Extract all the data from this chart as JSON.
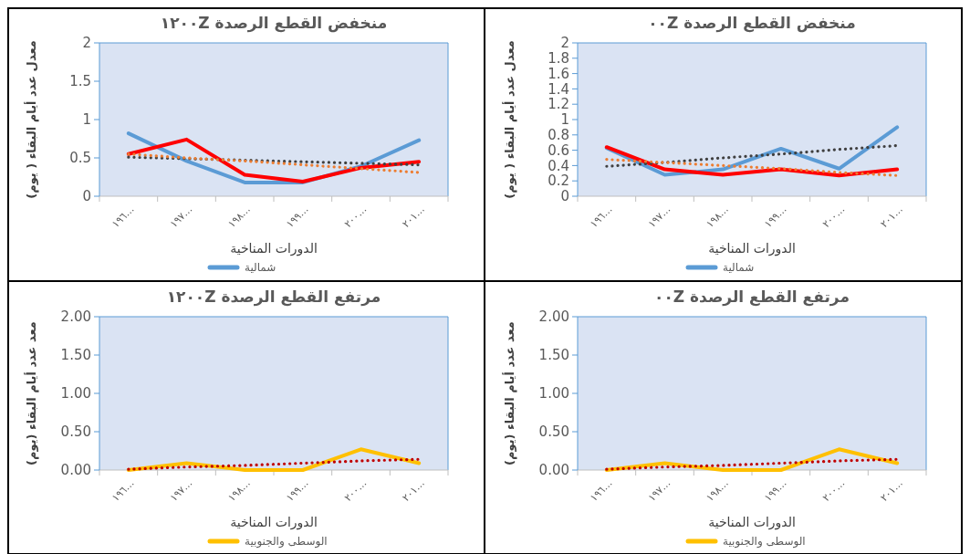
{
  "chart_data": [
    {
      "type": "line",
      "title": "منخفض القطع الرصدة ١٢٠٠Z",
      "ylabel": "معدل عدد أيام البقاء ( يوم)",
      "xlabel": "الدورات المناخية",
      "categories": [
        "١٩٦…",
        "١٩٧…",
        "١٩٨…",
        "١٩٩…",
        "٢٠٠…",
        "٢٠١…"
      ],
      "ylim": [
        0,
        2
      ],
      "yticks": [
        0,
        0.5,
        1,
        1.5,
        2
      ],
      "legend": "bottom",
      "series": [
        {
          "name": "شمالية",
          "color": "#5b9bd5",
          "values": [
            0.82,
            0.46,
            0.18,
            0.18,
            0.39,
            0.73
          ]
        },
        {
          "color": "#ff0000",
          "values": [
            0.55,
            0.74,
            0.28,
            0.19,
            0.37,
            0.45
          ]
        },
        {
          "color": "#404040",
          "line_style": "dotted",
          "values": [
            0.51,
            0.49,
            0.47,
            0.45,
            0.43,
            0.41
          ]
        },
        {
          "color": "#ed7d31",
          "line_style": "dotted",
          "values": [
            0.55,
            0.5,
            0.46,
            0.41,
            0.36,
            0.31
          ]
        }
      ]
    },
    {
      "type": "line",
      "title": "منخفض القطع الرصدة ٠٠Z",
      "ylabel": "معدل عدد أيام البقاء ( يوم)",
      "xlabel": "الدورات المناخية",
      "categories": [
        "١٩٦…",
        "١٩٧…",
        "١٩٨…",
        "١٩٩…",
        "٢٠٠…",
        "٢٠١…"
      ],
      "ylim": [
        0,
        2
      ],
      "yticks": [
        0,
        0.2,
        0.4,
        0.6,
        0.8,
        1,
        1.2,
        1.4,
        1.6,
        1.8,
        2
      ],
      "legend": "bottom",
      "series": [
        {
          "name": "شمالية",
          "color": "#5b9bd5",
          "values": [
            0.63,
            0.28,
            0.35,
            0.62,
            0.36,
            0.9
          ]
        },
        {
          "color": "#ff0000",
          "values": [
            0.64,
            0.35,
            0.28,
            0.35,
            0.27,
            0.35
          ]
        },
        {
          "color": "#404040",
          "line_style": "dotted",
          "values": [
            0.39,
            0.44,
            0.5,
            0.55,
            0.61,
            0.66
          ]
        },
        {
          "color": "#ed7d31",
          "line_style": "dotted",
          "values": [
            0.48,
            0.44,
            0.4,
            0.36,
            0.31,
            0.27
          ]
        }
      ]
    },
    {
      "type": "line",
      "title": "مرتفع القطع الرصدة ١٢٠٠Z",
      "ylabel": "معد عدد أيام البقاء (يوم)",
      "xlabel": "الدورات المناخية",
      "categories": [
        "١٩٦…",
        "١٩٧…",
        "١٩٨…",
        "١٩٩…",
        "٢٠٠…",
        "٢٠١…"
      ],
      "ylim": [
        0,
        2
      ],
      "yticks": [
        {
          "value": 0,
          "label": "0.00"
        },
        {
          "value": 0.5,
          "label": "0.50"
        },
        {
          "value": 1,
          "label": "1.00"
        },
        {
          "value": 1.5,
          "label": "1.50"
        },
        {
          "value": 2,
          "label": "2.00"
        }
      ],
      "legend": "bottom",
      "series": [
        {
          "name": "الوسطى والجنوبية",
          "color": "#ffc000",
          "values": [
            0,
            0.09,
            0,
            0,
            0.27,
            0.09
          ]
        },
        {
          "color": "#c00000",
          "line_style": "dotted",
          "values": [
            0.01,
            0.04,
            0.06,
            0.09,
            0.12,
            0.14
          ]
        }
      ]
    },
    {
      "type": "line",
      "title": "مرتفع القطع الرصدة ٠٠Z",
      "ylabel": "معد عدد أيام البقاء (يوم)",
      "xlabel": "الدورات المناخية",
      "categories": [
        "١٩٦…",
        "١٩٧…",
        "١٩٨…",
        "١٩٩…",
        "٢٠٠…",
        "٢٠١…"
      ],
      "ylim": [
        0,
        2
      ],
      "yticks": [
        {
          "value": 0,
          "label": "0.00"
        },
        {
          "value": 0.5,
          "label": "0.50"
        },
        {
          "value": 1,
          "label": "1.00"
        },
        {
          "value": 1.5,
          "label": "1.50"
        },
        {
          "value": 2,
          "label": "2.00"
        }
      ],
      "legend": "bottom",
      "series": [
        {
          "name": "الوسطى والجنوبية",
          "color": "#ffc000",
          "values": [
            0,
            0.09,
            0,
            0,
            0.27,
            0.09
          ]
        },
        {
          "color": "#c00000",
          "line_style": "dotted",
          "values": [
            0.01,
            0.04,
            0.06,
            0.09,
            0.12,
            0.14
          ]
        }
      ]
    }
  ]
}
